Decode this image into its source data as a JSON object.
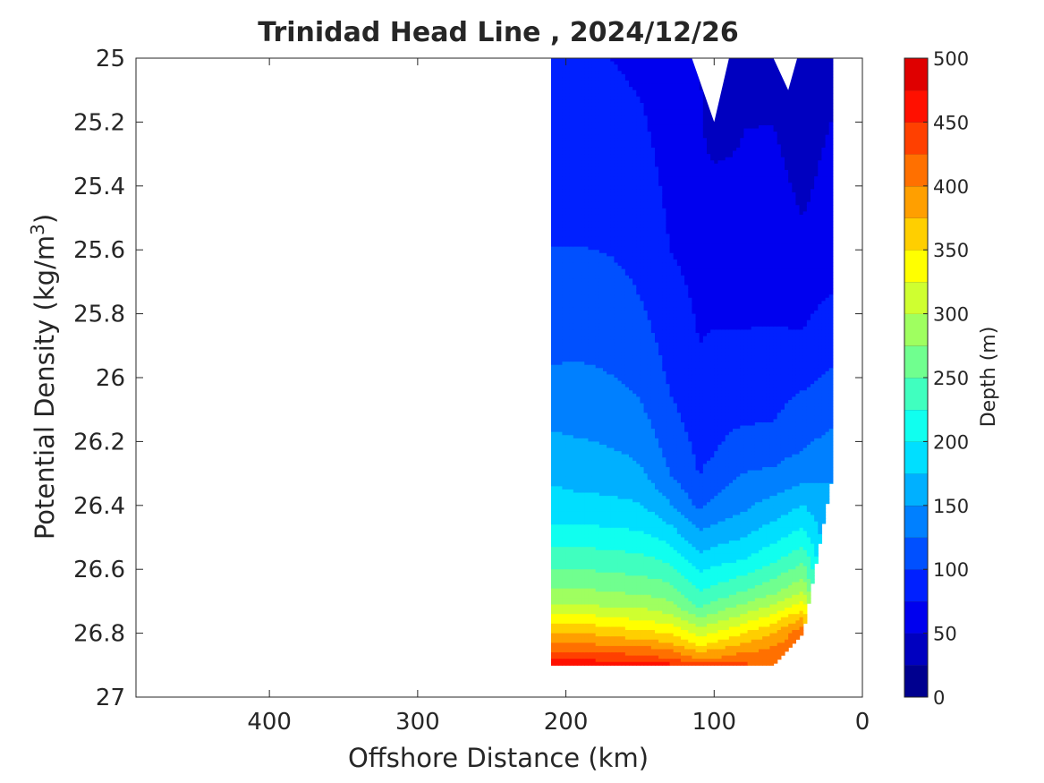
{
  "chart_data": {
    "type": "filled-contour",
    "title": "Trinidad Head Line , 2024/12/26",
    "xlabel": "Offshore Distance (km)",
    "ylabel": "Potential Density (kg/m",
    "ylabel_sup": "3",
    "ylabel_end": ")",
    "xlim": [
      490,
      0
    ],
    "ylim": [
      25,
      27
    ],
    "y_reversed": true,
    "x_reversed": true,
    "x_ticks": [
      {
        "value": 400,
        "label": "400"
      },
      {
        "value": 300,
        "label": "300"
      },
      {
        "value": 200,
        "label": "200"
      },
      {
        "value": 100,
        "label": "100"
      },
      {
        "value": 0,
        "label": "0"
      }
    ],
    "y_ticks": [
      {
        "value": 25,
        "label": "25"
      },
      {
        "value": 25.2,
        "label": "25.2"
      },
      {
        "value": 25.4,
        "label": "25.4"
      },
      {
        "value": 25.6,
        "label": "25.6"
      },
      {
        "value": 25.8,
        "label": "25.8"
      },
      {
        "value": 26,
        "label": "26"
      },
      {
        "value": 26.2,
        "label": "26.2"
      },
      {
        "value": 26.4,
        "label": "26.4"
      },
      {
        "value": 26.6,
        "label": "26.6"
      },
      {
        "value": 26.8,
        "label": "26.8"
      },
      {
        "value": 27,
        "label": "27"
      }
    ],
    "colorbar": {
      "label": "Depth (m)",
      "min": 0,
      "max": 500,
      "levels": 20,
      "ticks": [
        {
          "value": 0,
          "label": "0"
        },
        {
          "value": 50,
          "label": "50"
        },
        {
          "value": 100,
          "label": "100"
        },
        {
          "value": 150,
          "label": "150"
        },
        {
          "value": 200,
          "label": "200"
        },
        {
          "value": 250,
          "label": "250"
        },
        {
          "value": 300,
          "label": "300"
        },
        {
          "value": 350,
          "label": "350"
        },
        {
          "value": 400,
          "label": "400"
        },
        {
          "value": 450,
          "label": "450"
        },
        {
          "value": 500,
          "label": "500"
        }
      ],
      "colors": [
        "#00008f",
        "#0000c0",
        "#0000ef",
        "#0020ff",
        "#0050ff",
        "#0080ff",
        "#00b0ff",
        "#00dfff",
        "#10ffef",
        "#40ffbf",
        "#70ff8f",
        "#9fff60",
        "#cfff30",
        "#ffff00",
        "#ffcf00",
        "#ff9f00",
        "#ff7000",
        "#ff4000",
        "#ff1000",
        "#df0000"
      ]
    },
    "columns": [
      {
        "x": 210,
        "depth": [
          [
            25.0,
            75
          ],
          [
            25.59,
            100
          ],
          [
            25.96,
            125
          ],
          [
            26.17,
            150
          ],
          [
            26.34,
            175
          ],
          [
            26.46,
            200
          ],
          [
            26.53,
            225
          ],
          [
            26.6,
            250
          ],
          [
            26.66,
            275
          ],
          [
            26.71,
            300
          ],
          [
            26.74,
            325
          ],
          [
            26.77,
            350
          ],
          [
            26.8,
            375
          ],
          [
            26.83,
            400
          ],
          [
            26.86,
            425
          ],
          [
            26.88,
            450
          ],
          [
            26.9,
            470
          ]
        ]
      },
      {
        "x": 190,
        "depth": [
          [
            25.0,
            75
          ],
          [
            25.59,
            100
          ],
          [
            25.95,
            125
          ],
          [
            26.19,
            150
          ],
          [
            26.36,
            175
          ],
          [
            26.46,
            200
          ],
          [
            26.53,
            225
          ],
          [
            26.6,
            250
          ],
          [
            26.66,
            275
          ],
          [
            26.71,
            300
          ],
          [
            26.74,
            325
          ],
          [
            26.77,
            350
          ],
          [
            26.8,
            375
          ],
          [
            26.83,
            400
          ],
          [
            26.86,
            425
          ],
          [
            26.88,
            450
          ],
          [
            26.9,
            470
          ]
        ]
      },
      {
        "x": 170,
        "depth": [
          [
            25.0,
            75
          ],
          [
            25.62,
            100
          ],
          [
            25.99,
            125
          ],
          [
            26.22,
            150
          ],
          [
            26.37,
            175
          ],
          [
            26.47,
            200
          ],
          [
            26.54,
            225
          ],
          [
            26.61,
            250
          ],
          [
            26.67,
            275
          ],
          [
            26.72,
            300
          ],
          [
            26.75,
            325
          ],
          [
            26.78,
            350
          ],
          [
            26.81,
            375
          ],
          [
            26.84,
            400
          ],
          [
            26.86,
            425
          ],
          [
            26.89,
            450
          ],
          [
            26.9,
            470
          ]
        ]
      },
      {
        "x": 150,
        "depth": [
          [
            25.0,
            70
          ],
          [
            25.75,
            100
          ],
          [
            26.07,
            125
          ],
          [
            26.27,
            150
          ],
          [
            26.39,
            175
          ],
          [
            26.48,
            200
          ],
          [
            26.55,
            225
          ],
          [
            26.62,
            250
          ],
          [
            26.68,
            275
          ],
          [
            26.72,
            300
          ],
          [
            26.76,
            325
          ],
          [
            26.79,
            350
          ],
          [
            26.82,
            375
          ],
          [
            26.84,
            400
          ],
          [
            26.87,
            425
          ],
          [
            26.89,
            450
          ],
          [
            26.9,
            470
          ]
        ]
      },
      {
        "x": 130,
        "depth": [
          [
            25.0,
            60
          ],
          [
            25.6,
            75
          ],
          [
            26.05,
            100
          ],
          [
            26.3,
            125
          ],
          [
            26.39,
            150
          ],
          [
            26.46,
            175
          ],
          [
            26.52,
            200
          ],
          [
            26.58,
            225
          ],
          [
            26.64,
            250
          ],
          [
            26.7,
            275
          ],
          [
            26.74,
            300
          ],
          [
            26.77,
            325
          ],
          [
            26.8,
            350
          ],
          [
            26.83,
            375
          ],
          [
            26.85,
            400
          ],
          [
            26.88,
            425
          ],
          [
            26.9,
            460
          ]
        ]
      },
      {
        "x": 110,
        "depth": [
          [
            25.0,
            50
          ],
          [
            25.28,
            60
          ],
          [
            25.9,
            75
          ],
          [
            26.32,
            100
          ],
          [
            26.42,
            125
          ],
          [
            26.48,
            150
          ],
          [
            26.55,
            175
          ],
          [
            26.61,
            200
          ],
          [
            26.67,
            225
          ],
          [
            26.72,
            250
          ],
          [
            26.75,
            275
          ],
          [
            26.78,
            300
          ],
          [
            26.81,
            325
          ],
          [
            26.84,
            350
          ],
          [
            26.86,
            375
          ],
          [
            26.88,
            400
          ],
          [
            26.9,
            440
          ]
        ]
      },
      {
        "x": 100,
        "depth": [
          [
            25.2,
            25
          ],
          [
            25.33,
            50
          ],
          [
            25.85,
            75
          ],
          [
            26.25,
            100
          ],
          [
            26.38,
            125
          ],
          [
            26.46,
            150
          ],
          [
            26.53,
            175
          ],
          [
            26.59,
            200
          ],
          [
            26.65,
            225
          ],
          [
            26.7,
            250
          ],
          [
            26.74,
            275
          ],
          [
            26.77,
            300
          ],
          [
            26.8,
            325
          ],
          [
            26.83,
            350
          ],
          [
            26.85,
            375
          ],
          [
            26.88,
            400
          ],
          [
            26.9,
            440
          ]
        ]
      },
      {
        "x": 80,
        "depth": [
          [
            25.0,
            40
          ],
          [
            25.45,
            60
          ],
          [
            25.85,
            75
          ],
          [
            26.15,
            100
          ],
          [
            26.3,
            125
          ],
          [
            26.42,
            150
          ],
          [
            26.5,
            175
          ],
          [
            26.57,
            200
          ],
          [
            26.62,
            225
          ],
          [
            26.67,
            250
          ],
          [
            26.71,
            275
          ],
          [
            26.74,
            300
          ],
          [
            26.77,
            325
          ],
          [
            26.8,
            350
          ],
          [
            26.83,
            375
          ],
          [
            26.86,
            400
          ],
          [
            26.9,
            430
          ]
        ]
      },
      {
        "x": 60,
        "depth": [
          [
            25.0,
            40
          ],
          [
            25.41,
            60
          ],
          [
            25.84,
            75
          ],
          [
            26.14,
            100
          ],
          [
            26.28,
            125
          ],
          [
            26.37,
            150
          ],
          [
            26.45,
            175
          ],
          [
            26.52,
            200
          ],
          [
            26.58,
            225
          ],
          [
            26.63,
            250
          ],
          [
            26.68,
            275
          ],
          [
            26.71,
            300
          ],
          [
            26.74,
            325
          ],
          [
            26.77,
            350
          ],
          [
            26.8,
            375
          ],
          [
            26.84,
            400
          ],
          [
            26.9,
            420
          ]
        ]
      },
      {
        "x": 40,
        "depth": [
          [
            25.1,
            25
          ],
          [
            25.5,
            50
          ],
          [
            25.85,
            75
          ],
          [
            26.04,
            100
          ],
          [
            26.23,
            125
          ],
          [
            26.33,
            150
          ],
          [
            26.4,
            175
          ],
          [
            26.47,
            200
          ],
          [
            26.53,
            225
          ],
          [
            26.58,
            250
          ],
          [
            26.63,
            275
          ],
          [
            26.67,
            300
          ],
          [
            26.7,
            325
          ],
          [
            26.73,
            350
          ],
          [
            26.75,
            375
          ],
          [
            26.78,
            400
          ],
          [
            26.8,
            420
          ]
        ]
      },
      {
        "x": 20,
        "depth": [
          [
            25.0,
            40
          ],
          [
            25.35,
            60
          ],
          [
            25.73,
            75
          ],
          [
            25.97,
            100
          ],
          [
            26.16,
            125
          ],
          [
            26.3,
            150
          ]
        ]
      }
    ],
    "gaps": [
      {
        "name": "gap-near-100km",
        "points": [
          [
            115,
            25.0
          ],
          [
            100,
            25.2
          ],
          [
            90,
            25.0
          ]
        ]
      },
      {
        "name": "gap-near-50km",
        "points": [
          [
            60,
            25.0
          ],
          [
            50,
            25.1
          ],
          [
            44,
            25.0
          ]
        ]
      }
    ]
  }
}
